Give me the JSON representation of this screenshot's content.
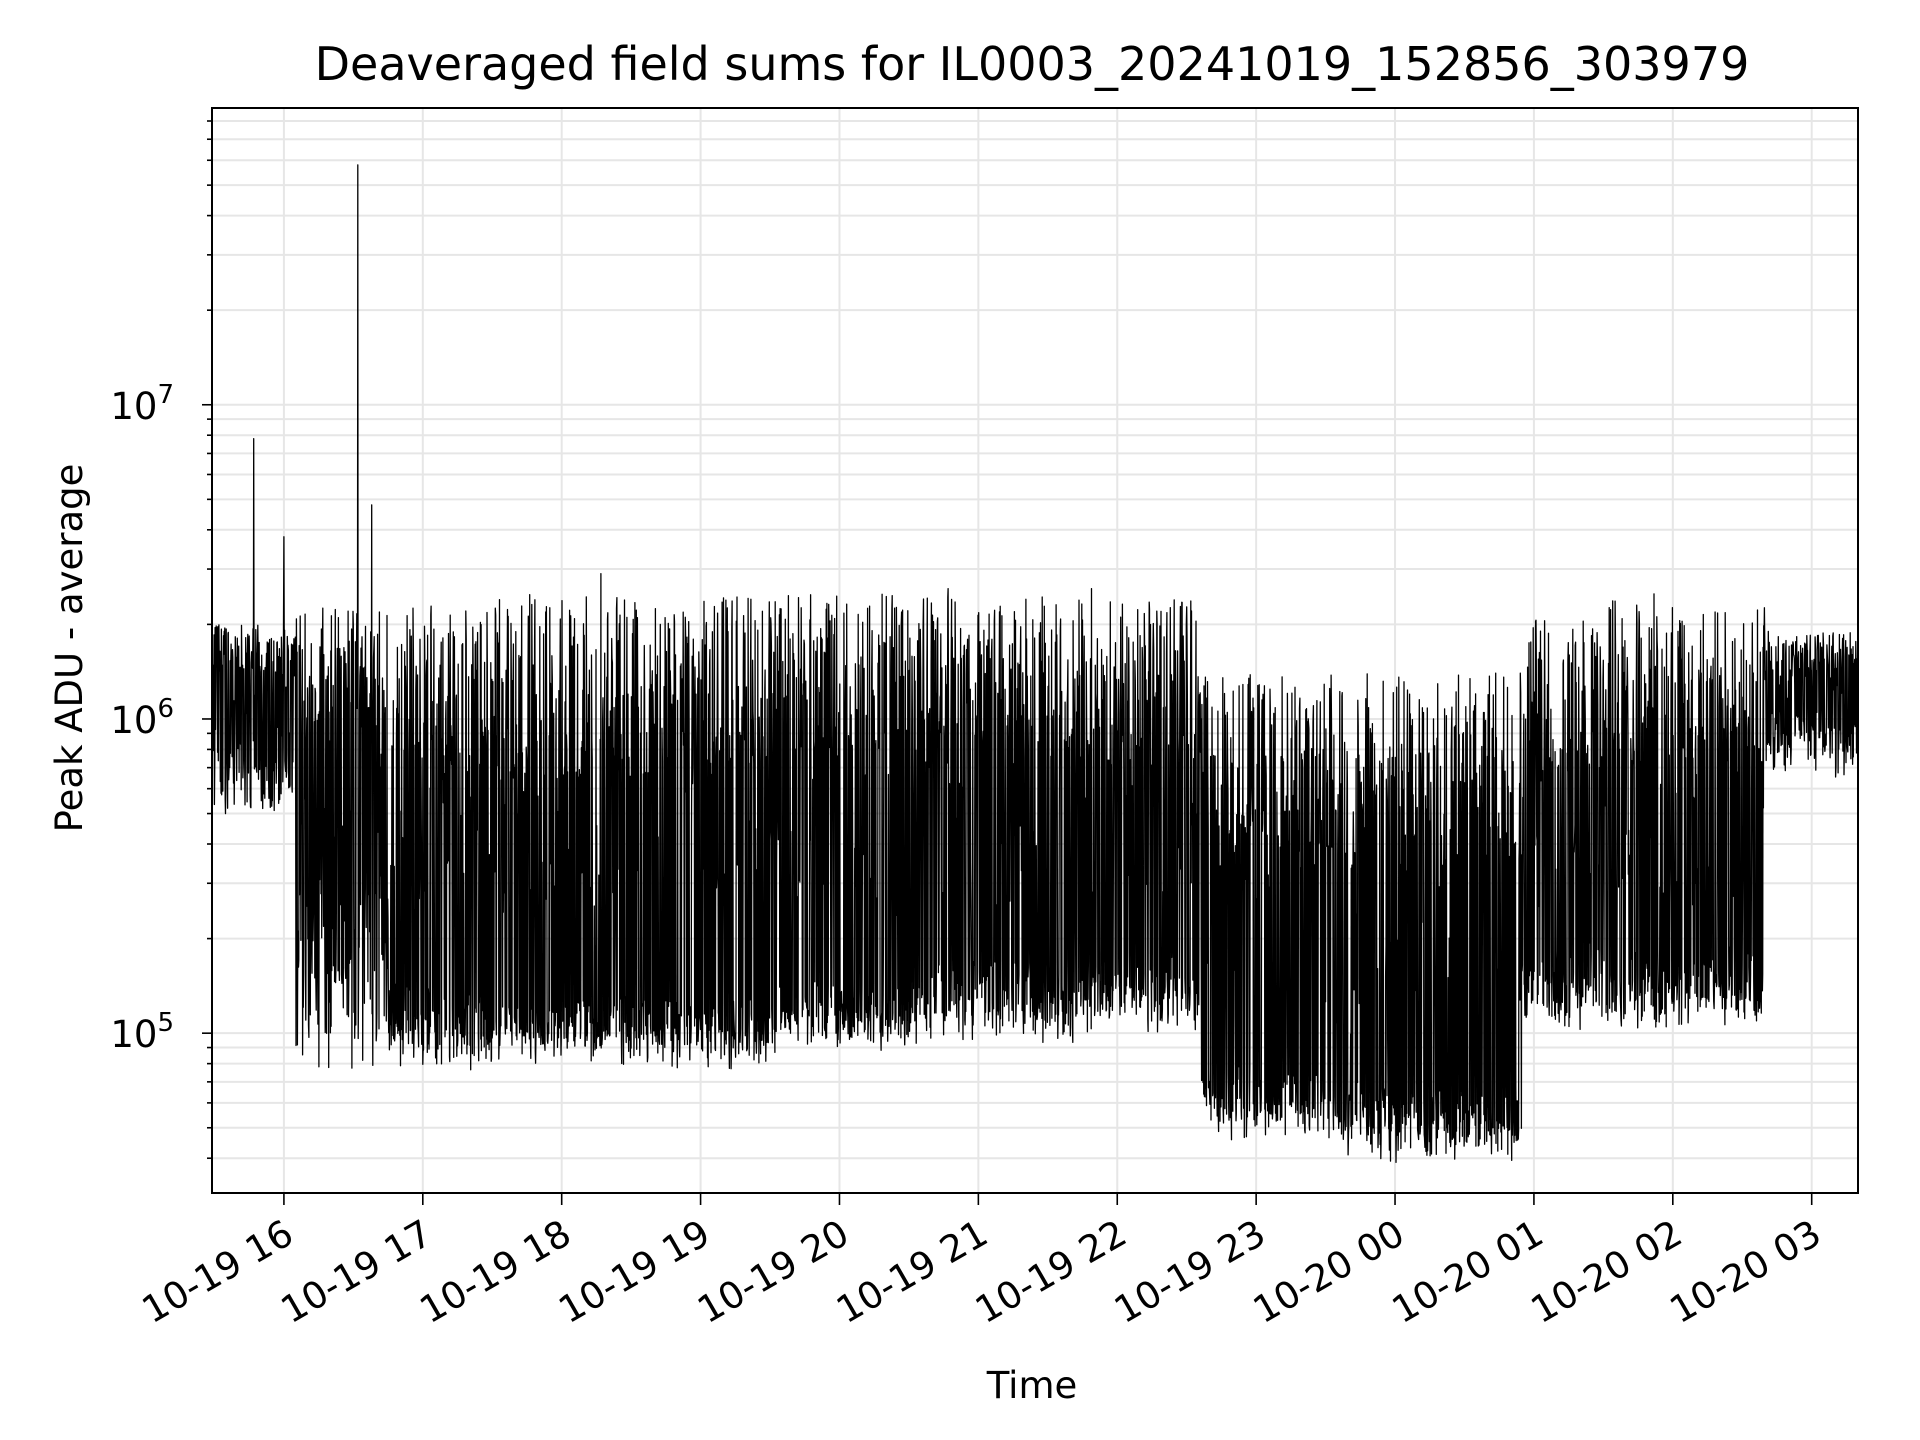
{
  "chart_data": {
    "type": "line",
    "title": "Deaveraged field sums for IL0003_20241019_152856_303979",
    "xlabel": "Time",
    "ylabel": "Peak ADU - average",
    "y_scale": "log",
    "ylim": [
      31000,
      88000000
    ],
    "xlim": [
      "2024-10-19 15:28:56",
      "2024-10-20 03:20"
    ],
    "x_tick_labels": [
      "10-19 16",
      "10-19 17",
      "10-19 18",
      "10-19 19",
      "10-19 20",
      "10-19 21",
      "10-19 22",
      "10-19 23",
      "10-20 00",
      "10-20 01",
      "10-20 02",
      "10-20 03"
    ],
    "y_tick_labels": [
      {
        "base": "10",
        "exp": "5",
        "value": 100000
      },
      {
        "base": "10",
        "exp": "6",
        "value": 1000000
      },
      {
        "base": "10",
        "exp": "7",
        "value": 10000000
      }
    ],
    "grid": true,
    "line_color": "#000000",
    "series": [
      {
        "spikes": [
          {
            "time": "2024-10-19 15:47",
            "value": 7800000
          },
          {
            "time": "2024-10-19 16:00",
            "value": 3800000
          },
          {
            "time": "2024-10-19 16:32",
            "value": 58000000
          },
          {
            "time": "2024-10-19 16:38",
            "value": 4800000
          },
          {
            "time": "2024-10-19 18:17",
            "value": 2900000
          },
          {
            "time": "2024-10-19 20:47",
            "value": 2600000
          },
          {
            "time": "2024-10-19 21:49",
            "value": 2600000
          },
          {
            "time": "2024-10-20 01:52",
            "value": 2500000
          }
        ],
        "segments": [
          {
            "start": "2024-10-19 15:28:56",
            "end": "2024-10-19 16:05",
            "base": 900000,
            "top": 2000000,
            "bottom": 500000
          },
          {
            "start": "2024-10-19 16:05",
            "end": "2024-10-19 16:45",
            "base": 300000,
            "top": 2300000,
            "bottom": 72000
          },
          {
            "start": "2024-10-19 16:45",
            "end": "2024-10-19 17:30",
            "base": 130000,
            "top": 2300000,
            "bottom": 80000
          },
          {
            "start": "2024-10-19 17:30",
            "end": "2024-10-19 18:30",
            "base": 120000,
            "top": 2500000,
            "bottom": 85000
          },
          {
            "start": "2024-10-19 18:30",
            "end": "2024-10-19 19:30",
            "base": 120000,
            "top": 2500000,
            "bottom": 85000
          },
          {
            "start": "2024-10-19 19:30",
            "end": "2024-10-19 20:40",
            "base": 130000,
            "top": 2500000,
            "bottom": 95000
          },
          {
            "start": "2024-10-19 20:40",
            "end": "2024-10-19 21:52",
            "base": 160000,
            "top": 2450000,
            "bottom": 100000
          },
          {
            "start": "2024-10-19 21:52",
            "end": "2024-10-19 22:36",
            "base": 160000,
            "top": 2400000,
            "bottom": 110000
          },
          {
            "start": "2024-10-19 22:36",
            "end": "2024-10-19 23:30",
            "base": 70000,
            "top": 1400000,
            "bottom": 50000
          },
          {
            "start": "2024-10-19 23:30",
            "end": "2024-10-20 00:55",
            "base": 62000,
            "top": 1400000,
            "bottom": 42000
          },
          {
            "start": "2024-10-20 00:55",
            "end": "2024-10-20 01:30",
            "base": 170000,
            "top": 2100000,
            "bottom": 110000
          },
          {
            "start": "2024-10-20 01:30",
            "end": "2024-10-20 02:40",
            "base": 170000,
            "top": 2400000,
            "bottom": 110000
          },
          {
            "start": "2024-10-20 02:40",
            "end": "2024-10-20 03:20",
            "base": 1000000,
            "top": 1900000,
            "bottom": 700000
          }
        ]
      }
    ]
  }
}
